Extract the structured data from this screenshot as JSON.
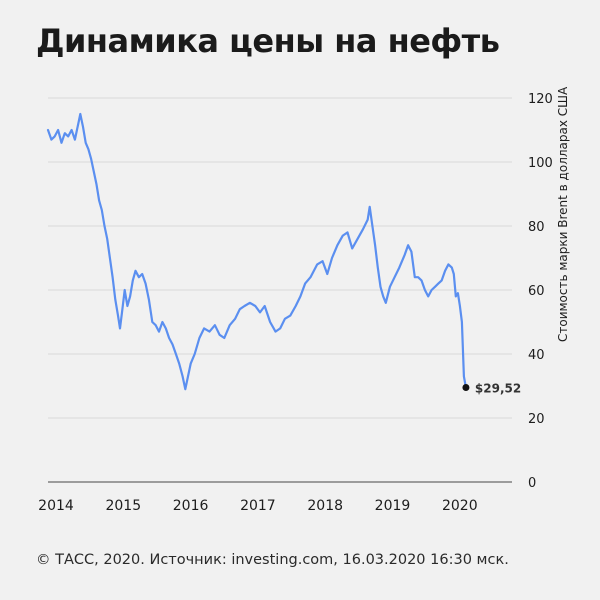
{
  "header": {
    "title": "Динамика цены на нефть"
  },
  "footer": {
    "source": "© ТАСС, 2020. Источник: investing.com, 16.03.2020 16:30 мск."
  },
  "colors": {
    "line": "#5b8ff0",
    "grid": "#d9d9d9",
    "axis": "#808080",
    "text": "#1d1d1d",
    "background": "#f1f1f1",
    "marker": "#111111"
  },
  "chart_data": {
    "type": "line",
    "title": "Динамика цены на нефть",
    "xlabel": "",
    "ylabel": "Стоимость марки Brent в долларах США",
    "ylim": [
      0,
      120
    ],
    "xlim": [
      2014.0,
      2020.75
    ],
    "yticks": [
      0,
      20,
      40,
      60,
      80,
      100,
      120
    ],
    "xticks": [
      "2014",
      "2015",
      "2016",
      "2017",
      "2018",
      "2019",
      "2020"
    ],
    "grid": "horizontal",
    "y_axis_position": "right",
    "legend": "none",
    "annotation": {
      "label": "$29,52",
      "x": 2020.21,
      "y": 29.52
    },
    "series": [
      {
        "name": "Brent",
        "x": [
          2014.0,
          2014.05,
          2014.1,
          2014.15,
          2014.2,
          2014.25,
          2014.3,
          2014.35,
          2014.4,
          2014.45,
          2014.48,
          2014.52,
          2014.56,
          2014.6,
          2014.64,
          2014.68,
          2014.72,
          2014.76,
          2014.8,
          2014.84,
          2014.88,
          2014.92,
          2014.96,
          2015.0,
          2015.04,
          2015.07,
          2015.1,
          2015.14,
          2015.18,
          2015.22,
          2015.26,
          2015.3,
          2015.35,
          2015.4,
          2015.45,
          2015.5,
          2015.55,
          2015.6,
          2015.65,
          2015.7,
          2015.75,
          2015.8,
          2015.85,
          2015.9,
          2015.95,
          2016.0,
          2016.04,
          2016.08,
          2016.12,
          2016.18,
          2016.25,
          2016.32,
          2016.4,
          2016.48,
          2016.55,
          2016.62,
          2016.7,
          2016.78,
          2016.85,
          2016.92,
          2017.0,
          2017.08,
          2017.15,
          2017.22,
          2017.3,
          2017.38,
          2017.45,
          2017.52,
          2017.6,
          2017.68,
          2017.75,
          2017.82,
          2017.9,
          2018.0,
          2018.08,
          2018.15,
          2018.22,
          2018.3,
          2018.38,
          2018.45,
          2018.52,
          2018.6,
          2018.68,
          2018.75,
          2018.78,
          2018.82,
          2018.86,
          2018.9,
          2018.94,
          2018.98,
          2019.02,
          2019.08,
          2019.15,
          2019.22,
          2019.3,
          2019.35,
          2019.4,
          2019.45,
          2019.5,
          2019.55,
          2019.6,
          2019.65,
          2019.7,
          2019.75,
          2019.8,
          2019.85,
          2019.9,
          2019.95,
          2020.0,
          2020.03,
          2020.06,
          2020.09,
          2020.12,
          2020.15,
          2020.18,
          2020.21
        ],
        "values": [
          110,
          107,
          108,
          110,
          106,
          109,
          108,
          110,
          107,
          112,
          115,
          111,
          106,
          104,
          101,
          97,
          93,
          88,
          85,
          80,
          76,
          70,
          64,
          57,
          52,
          48,
          53,
          60,
          55,
          58,
          63,
          66,
          64,
          65,
          62,
          57,
          50,
          49,
          47,
          50,
          48,
          45,
          43,
          40,
          37,
          33,
          29,
          33,
          37,
          40,
          45,
          48,
          47,
          49,
          46,
          45,
          49,
          51,
          54,
          55,
          56,
          55,
          53,
          55,
          50,
          47,
          48,
          51,
          52,
          55,
          58,
          62,
          64,
          68,
          69,
          65,
          70,
          74,
          77,
          78,
          73,
          76,
          79,
          82,
          86,
          80,
          74,
          67,
          61,
          58,
          56,
          61,
          64,
          67,
          71,
          74,
          72,
          64,
          64,
          63,
          60,
          58,
          60,
          61,
          62,
          63,
          66,
          68,
          67,
          65,
          58,
          59,
          55,
          50,
          33,
          29.52
        ]
      }
    ]
  }
}
